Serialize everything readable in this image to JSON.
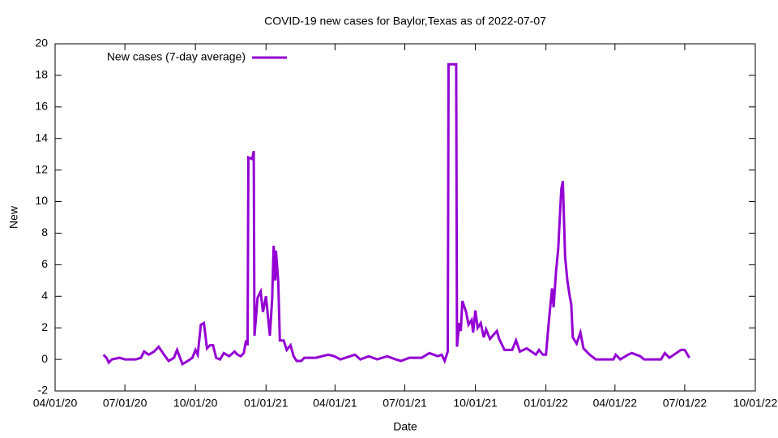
{
  "chart_data": {
    "type": "line",
    "title": "COVID-19 new cases for Baylor,Texas as of 2022-07-07",
    "x_label": "Date",
    "y_label": "New",
    "legend": "top left",
    "x": [
      "2020-06-03",
      "2020-06-07",
      "2020-06-10",
      "2020-06-14",
      "2020-06-24",
      "2020-07-01",
      "2020-07-15",
      "2020-07-22",
      "2020-07-26",
      "2020-08-01",
      "2020-08-08",
      "2020-08-14",
      "2020-08-21",
      "2020-08-27",
      "2020-09-03",
      "2020-09-07",
      "2020-09-14",
      "2020-09-21",
      "2020-09-27",
      "2020-10-01",
      "2020-10-04",
      "2020-10-08",
      "2020-10-12",
      "2020-10-16",
      "2020-10-20",
      "2020-10-24",
      "2020-10-28",
      "2020-11-02",
      "2020-11-07",
      "2020-11-14",
      "2020-11-21",
      "2020-11-25",
      "2020-11-29",
      "2020-12-03",
      "2020-12-06",
      "2020-12-08",
      "2020-12-09",
      "2020-12-14",
      "2020-12-16",
      "2020-12-17",
      "2020-12-21",
      "2020-12-25",
      "2020-12-28",
      "2021-01-01",
      "2021-01-04",
      "2021-01-06",
      "2021-01-09",
      "2021-01-11",
      "2021-01-13",
      "2021-01-14",
      "2021-01-17",
      "2021-01-19",
      "2021-01-24",
      "2021-01-28",
      "2021-02-02",
      "2021-02-06",
      "2021-02-10",
      "2021-02-16",
      "2021-02-20",
      "2021-03-07",
      "2021-03-23",
      "2021-03-31",
      "2021-04-08",
      "2021-04-27",
      "2021-05-04",
      "2021-05-15",
      "2021-05-26",
      "2021-06-08",
      "2021-06-19",
      "2021-06-26",
      "2021-07-07",
      "2021-07-23",
      "2021-08-02",
      "2021-08-13",
      "2021-08-18",
      "2021-08-22",
      "2021-08-26",
      "2021-08-27",
      "2021-09-06",
      "2021-09-07",
      "2021-09-10",
      "2021-09-12",
      "2021-09-14",
      "2021-09-19",
      "2021-09-22",
      "2021-09-26",
      "2021-09-28",
      "2021-10-01",
      "2021-10-04",
      "2021-10-08",
      "2021-10-12",
      "2021-10-15",
      "2021-10-20",
      "2021-10-29",
      "2021-11-01",
      "2021-11-08",
      "2021-11-18",
      "2021-11-23",
      "2021-11-28",
      "2021-12-07",
      "2021-12-13",
      "2021-12-19",
      "2021-12-23",
      "2021-12-28",
      "2022-01-01",
      "2022-01-05",
      "2022-01-09",
      "2022-01-11",
      "2022-01-14",
      "2022-01-17",
      "2022-01-21",
      "2022-01-23",
      "2022-01-26",
      "2022-01-29",
      "2022-02-01",
      "2022-02-03",
      "2022-02-05",
      "2022-02-10",
      "2022-02-15",
      "2022-02-19",
      "2022-02-27",
      "2022-03-07",
      "2022-03-30",
      "2022-04-02",
      "2022-04-08",
      "2022-04-18",
      "2022-04-23",
      "2022-05-04",
      "2022-05-09",
      "2022-05-31",
      "2022-06-05",
      "2022-06-11",
      "2022-06-17",
      "2022-06-26",
      "2022-07-01",
      "2022-07-07"
    ],
    "series": [
      {
        "name": "New cases (7-day average)",
        "color": "#9400d3",
        "values": [
          0.3,
          0.1,
          -0.2,
          0,
          0.1,
          0,
          0,
          0.1,
          0.5,
          0.3,
          0.5,
          0.8,
          0.3,
          -0.1,
          0.1,
          0.6,
          -0.3,
          -0.1,
          0.1,
          0.6,
          0.3,
          2.2,
          2.3,
          0.7,
          0.9,
          0.9,
          0.1,
          0,
          0.4,
          0.2,
          0.5,
          0.3,
          0.2,
          0.4,
          1.2,
          0.9,
          12.8,
          12.7,
          13.2,
          1.5,
          3.9,
          4.3,
          3.0,
          4.0,
          2.5,
          1.5,
          3.8,
          7.2,
          5.0,
          6.9,
          4.9,
          1.2,
          1.2,
          0.6,
          0.9,
          0.2,
          -0.1,
          -0.1,
          0.1,
          0.1,
          0.3,
          0.2,
          0,
          0.3,
          0,
          0.2,
          0,
          0.2,
          0,
          -0.1,
          0.1,
          0.1,
          0.4,
          0.2,
          0.3,
          -0.1,
          0.5,
          18.7,
          18.7,
          0.8,
          2.3,
          1.8,
          3.7,
          3.0,
          2.2,
          2.5,
          1.7,
          3.1,
          2.0,
          2.3,
          1.4,
          1.9,
          1.3,
          1.8,
          1.3,
          0.6,
          0.6,
          1.2,
          0.5,
          0.7,
          0.5,
          0.3,
          0.6,
          0.3,
          0.3,
          2.5,
          4.5,
          3.3,
          5.5,
          7.0,
          10.8,
          11.3,
          6.5,
          5.0,
          4.0,
          3.5,
          1.4,
          1.0,
          1.7,
          0.7,
          0.3,
          0,
          0,
          0.3,
          0,
          0.3,
          0.4,
          0.2,
          0,
          0,
          0.4,
          0.1,
          0.3,
          0.6,
          0.6,
          0.1
        ]
      }
    ],
    "xlim": [
      "2020-04-01",
      "2022-10-01"
    ],
    "xticks": [
      {
        "value": "2020-04-01",
        "label": "04/01/20"
      },
      {
        "value": "2020-07-01",
        "label": "07/01/20"
      },
      {
        "value": "2020-10-01",
        "label": "10/01/20"
      },
      {
        "value": "2021-01-01",
        "label": "01/01/21"
      },
      {
        "value": "2021-04-01",
        "label": "04/01/21"
      },
      {
        "value": "2021-07-01",
        "label": "07/01/21"
      },
      {
        "value": "2021-10-01",
        "label": "10/01/21"
      },
      {
        "value": "2022-01-01",
        "label": "01/01/22"
      },
      {
        "value": "2022-04-01",
        "label": "04/01/22"
      },
      {
        "value": "2022-07-01",
        "label": "07/01/22"
      },
      {
        "value": "2022-10-01",
        "label": "10/01/22"
      }
    ],
    "ylim": [
      -2,
      20
    ],
    "yticks": [
      -2,
      0,
      2,
      4,
      6,
      8,
      10,
      12,
      14,
      16,
      18,
      20
    ]
  }
}
